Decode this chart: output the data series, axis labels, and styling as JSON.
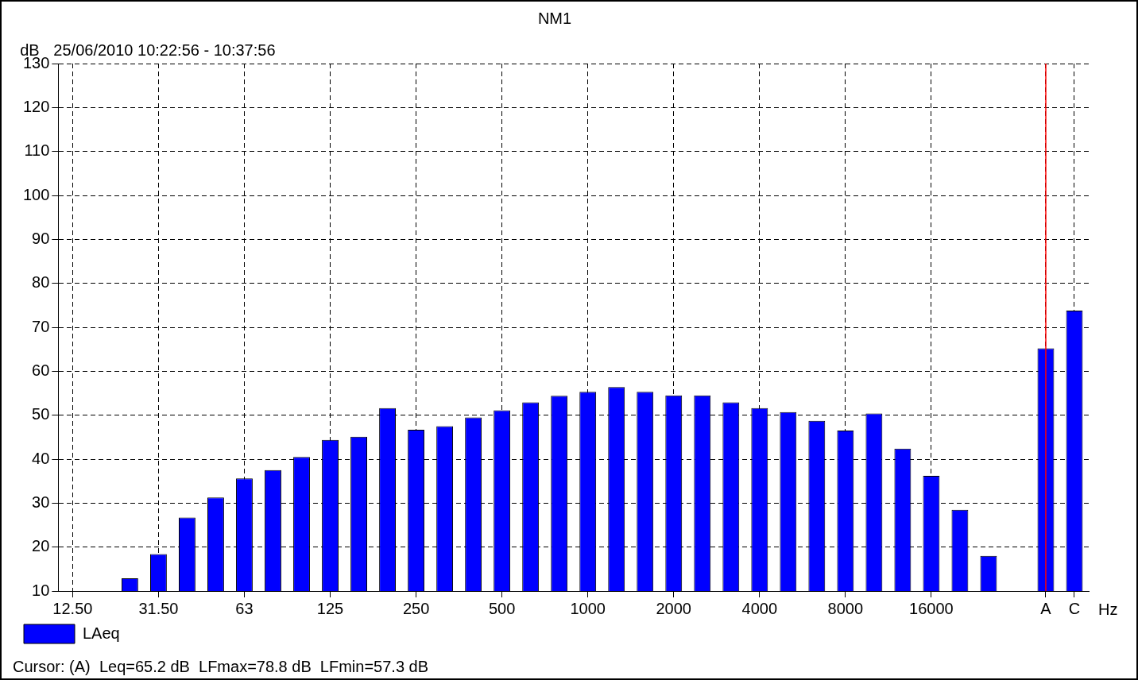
{
  "chart_data": {
    "type": "bar",
    "title": "NM1",
    "subtitle": "25/06/2010 10:22:56 - 10:37:56",
    "xlabel": "Hz",
    "ylabel": "dB",
    "categories": [
      "12.50",
      null,
      null,
      "31.50",
      null,
      null,
      "63",
      null,
      null,
      "125",
      null,
      null,
      "250",
      null,
      null,
      "500",
      null,
      null,
      "1000",
      null,
      null,
      "2000",
      null,
      null,
      "4000",
      null,
      null,
      "8000",
      null,
      null,
      "16000",
      null,
      null,
      null,
      "A",
      "C"
    ],
    "series": [
      {
        "name": "LAeq",
        "color": "#0000ff",
        "values": [
          null,
          null,
          12.9,
          18.4,
          26.7,
          31.3,
          35.6,
          37.5,
          40.5,
          44.4,
          45.1,
          51.6,
          46.7,
          47.5,
          49.5,
          51.1,
          52.9,
          54.4,
          55.3,
          56.4,
          55.3,
          54.5,
          54.5,
          52.9,
          51.6,
          50.7,
          48.7,
          46.5,
          50.4,
          42.4,
          36.2,
          28.5,
          18.0,
          null,
          65.2,
          73.8
        ]
      }
    ],
    "ylim": [
      10,
      130
    ],
    "yticks": [
      10,
      20,
      30,
      40,
      50,
      60,
      70,
      80,
      90,
      100,
      110,
      120,
      130
    ],
    "grid": true,
    "legend": "bottom left",
    "ref_lines": [
      {
        "axis": "x",
        "value": "A",
        "color": "#ff0000"
      }
    ],
    "annotations": [
      "Cursor: (A)  Leq=65.2 dB  LFmax=78.8 dB  LFmin=57.3 dB"
    ]
  }
}
